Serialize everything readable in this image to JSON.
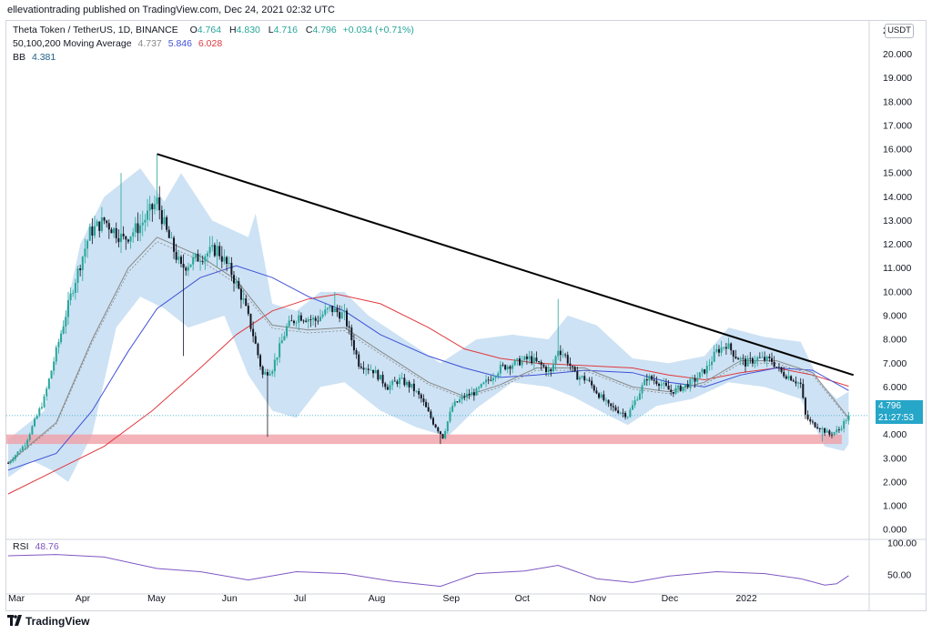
{
  "header": {
    "publish_line": "ellevationtrading published on TradingView.com, Dec 24, 2021 02:32 UTC"
  },
  "legend": {
    "symbol_line": "Theta Token / TetherUS, 1D, BINANCE",
    "ohlc": {
      "O_label": "O",
      "O": "4.764",
      "H_label": "H",
      "H": "4.830",
      "L_label": "L",
      "L": "4.716",
      "C_label": "C",
      "C": "4.796",
      "change": "+0.034 (+0.71%)"
    },
    "ma_label": "50,100,200 Moving Average",
    "ma50": "4.737",
    "ma100": "5.846",
    "ma200": "6.028",
    "bb_label": "BB",
    "bb": "4.381",
    "rsi_label": "RSI",
    "rsi": "48.76"
  },
  "currency_badge": "USDT",
  "price_tag": {
    "price": "4.796",
    "countdown": "21:27:53"
  },
  "footer": {
    "brand": "TradingView"
  },
  "colors": {
    "up": "#26a69a",
    "down": "#131722",
    "ma50": "#888888",
    "ma100": "#3f51d8",
    "ma200": "#e0393e",
    "band": "#bcd8f0",
    "trendline": "#000000",
    "support": "#f0a0a8",
    "rsi": "#7e57c2",
    "price_tag": "#26a6c8"
  },
  "chart_data": {
    "type": "candlestick",
    "x_axis_labels": [
      "Mar",
      "Apr",
      "May",
      "Jun",
      "Jul",
      "Aug",
      "Sep",
      "Oct",
      "Nov",
      "Dec",
      "2022"
    ],
    "y_ticks": [
      "0.000",
      "1.000",
      "2.000",
      "3.000",
      "4.000",
      "5.000",
      "6.000",
      "7.000",
      "8.000",
      "9.000",
      "10.000",
      "11.000",
      "12.000",
      "13.000",
      "14.000",
      "15.000",
      "16.000",
      "17.000",
      "18.000",
      "19.000",
      "20.000"
    ],
    "y_top_clipped_label": "2",
    "ylim": [
      -0.3,
      21.4
    ],
    "rsi_ticks": [
      "50.00",
      "100.00"
    ],
    "rsi_range": [
      20,
      100
    ],
    "close_path": [
      [
        0,
        2.8
      ],
      [
        7,
        3.6
      ],
      [
        15,
        5.5
      ],
      [
        20,
        7.5
      ],
      [
        27,
        10.2
      ],
      [
        34,
        12.5
      ],
      [
        40,
        13.0
      ],
      [
        48,
        12.2
      ],
      [
        55,
        12.8
      ],
      [
        62,
        13.8
      ],
      [
        66,
        12.5
      ],
      [
        72,
        11.0
      ],
      [
        80,
        11.5
      ],
      [
        87,
        11.8
      ],
      [
        93,
        10.8
      ],
      [
        98,
        9.6
      ],
      [
        102,
        8.2
      ],
      [
        106,
        6.5
      ],
      [
        110,
        6.8
      ],
      [
        116,
        8.5
      ],
      [
        121,
        9.0
      ],
      [
        128,
        8.8
      ],
      [
        134,
        9.3
      ],
      [
        140,
        9.0
      ],
      [
        146,
        7.0
      ],
      [
        152,
        6.7
      ],
      [
        158,
        6.0
      ],
      [
        163,
        6.3
      ],
      [
        168,
        6.0
      ],
      [
        172,
        5.5
      ],
      [
        177,
        4.5
      ],
      [
        181,
        3.9
      ],
      [
        185,
        5.2
      ],
      [
        190,
        5.6
      ],
      [
        195,
        5.8
      ],
      [
        200,
        6.3
      ],
      [
        205,
        6.8
      ],
      [
        211,
        7.0
      ],
      [
        217,
        7.2
      ],
      [
        222,
        6.9
      ],
      [
        226,
        6.6
      ],
      [
        229,
        7.6
      ],
      [
        232,
        7.3
      ],
      [
        236,
        6.5
      ],
      [
        241,
        6.3
      ],
      [
        245,
        5.8
      ],
      [
        250,
        5.2
      ],
      [
        254,
        5.0
      ],
      [
        258,
        4.8
      ],
      [
        262,
        5.6
      ],
      [
        266,
        6.4
      ],
      [
        271,
        6.2
      ],
      [
        276,
        5.8
      ],
      [
        281,
        6.0
      ],
      [
        286,
        6.3
      ],
      [
        291,
        6.8
      ],
      [
        295,
        7.5
      ],
      [
        299,
        7.8
      ],
      [
        303,
        7.3
      ],
      [
        307,
        7.0
      ],
      [
        312,
        7.2
      ],
      [
        318,
        7.1
      ],
      [
        322,
        6.6
      ],
      [
        326,
        6.4
      ],
      [
        330,
        6.1
      ],
      [
        332,
        4.8
      ],
      [
        334,
        4.5
      ],
      [
        338,
        4.3
      ],
      [
        342,
        4.0
      ],
      [
        346,
        4.2
      ],
      [
        350,
        4.8
      ]
    ],
    "marked_extremes": [
      {
        "day": 47,
        "high": 15.0
      },
      {
        "day": 62,
        "high": 15.8
      },
      {
        "day": 73,
        "low": 7.3
      },
      {
        "day": 108,
        "low": 3.9
      },
      {
        "day": 136,
        "high": 10.0
      },
      {
        "day": 180,
        "low": 3.6
      },
      {
        "day": 229,
        "high": 9.7
      },
      {
        "day": 339,
        "low": 3.7
      }
    ],
    "ma50_path": [
      [
        0,
        2.8
      ],
      [
        20,
        4.5
      ],
      [
        35,
        8.0
      ],
      [
        50,
        11.0
      ],
      [
        62,
        12.3
      ],
      [
        80,
        11.5
      ],
      [
        95,
        10.5
      ],
      [
        110,
        8.6
      ],
      [
        125,
        8.4
      ],
      [
        140,
        8.5
      ],
      [
        155,
        7.5
      ],
      [
        175,
        6.2
      ],
      [
        190,
        5.6
      ],
      [
        205,
        6.1
      ],
      [
        220,
        6.8
      ],
      [
        240,
        6.8
      ],
      [
        260,
        6.0
      ],
      [
        275,
        5.8
      ],
      [
        290,
        6.2
      ],
      [
        305,
        7.1
      ],
      [
        320,
        7.1
      ],
      [
        335,
        6.6
      ],
      [
        350,
        4.7
      ]
    ],
    "ma100_path": [
      [
        0,
        2.5
      ],
      [
        20,
        3.2
      ],
      [
        35,
        5.0
      ],
      [
        50,
        7.5
      ],
      [
        62,
        9.3
      ],
      [
        80,
        10.6
      ],
      [
        95,
        11.1
      ],
      [
        110,
        10.6
      ],
      [
        125,
        9.8
      ],
      [
        140,
        9.2
      ],
      [
        155,
        8.2
      ],
      [
        175,
        7.3
      ],
      [
        190,
        6.8
      ],
      [
        205,
        6.4
      ],
      [
        220,
        6.5
      ],
      [
        240,
        6.7
      ],
      [
        260,
        6.6
      ],
      [
        275,
        6.2
      ],
      [
        290,
        6.0
      ],
      [
        305,
        6.5
      ],
      [
        320,
        6.8
      ],
      [
        335,
        6.7
      ],
      [
        350,
        5.85
      ]
    ],
    "ma200_path": [
      [
        0,
        1.5
      ],
      [
        20,
        2.5
      ],
      [
        40,
        3.5
      ],
      [
        60,
        5.0
      ],
      [
        80,
        6.8
      ],
      [
        95,
        8.2
      ],
      [
        110,
        9.2
      ],
      [
        125,
        9.7
      ],
      [
        137,
        9.9
      ],
      [
        155,
        9.5
      ],
      [
        175,
        8.5
      ],
      [
        190,
        7.6
      ],
      [
        205,
        7.2
      ],
      [
        220,
        7.0
      ],
      [
        240,
        6.9
      ],
      [
        260,
        6.8
      ],
      [
        275,
        6.5
      ],
      [
        290,
        6.3
      ],
      [
        305,
        6.6
      ],
      [
        320,
        6.8
      ],
      [
        335,
        6.5
      ],
      [
        350,
        6.03
      ]
    ],
    "bb_upper": [
      [
        0,
        3.8
      ],
      [
        15,
        5.0
      ],
      [
        30,
        12.0
      ],
      [
        40,
        14.0
      ],
      [
        55,
        15.2
      ],
      [
        65,
        13.8
      ],
      [
        72,
        15.0
      ],
      [
        85,
        13.0
      ],
      [
        100,
        12.3
      ],
      [
        103,
        13.3
      ],
      [
        110,
        9.5
      ],
      [
        120,
        9.2
      ],
      [
        130,
        10.0
      ],
      [
        140,
        10.0
      ],
      [
        150,
        9.0
      ],
      [
        165,
        8.0
      ],
      [
        180,
        7.0
      ],
      [
        195,
        8.0
      ],
      [
        210,
        8.2
      ],
      [
        225,
        8.0
      ],
      [
        233,
        9.0
      ],
      [
        245,
        8.6
      ],
      [
        260,
        7.2
      ],
      [
        275,
        7.0
      ],
      [
        290,
        7.3
      ],
      [
        300,
        8.5
      ],
      [
        315,
        8.1
      ],
      [
        330,
        7.9
      ],
      [
        338,
        6.2
      ],
      [
        345,
        5.5
      ],
      [
        350,
        5.8
      ]
    ],
    "bb_lower": [
      [
        0,
        2.2
      ],
      [
        10,
        2.9
      ],
      [
        18,
        2.5
      ],
      [
        25,
        2.0
      ],
      [
        35,
        4.0
      ],
      [
        45,
        8.5
      ],
      [
        55,
        9.8
      ],
      [
        65,
        9.3
      ],
      [
        75,
        8.5
      ],
      [
        90,
        9.0
      ],
      [
        100,
        6.5
      ],
      [
        110,
        5.0
      ],
      [
        120,
        4.7
      ],
      [
        130,
        6.0
      ],
      [
        140,
        6.2
      ],
      [
        155,
        5.0
      ],
      [
        170,
        4.3
      ],
      [
        183,
        3.9
      ],
      [
        195,
        5.1
      ],
      [
        210,
        6.2
      ],
      [
        225,
        6.0
      ],
      [
        235,
        5.6
      ],
      [
        250,
        4.8
      ],
      [
        258,
        4.4
      ],
      [
        270,
        5.2
      ],
      [
        285,
        5.5
      ],
      [
        300,
        6.2
      ],
      [
        315,
        6.0
      ],
      [
        330,
        5.5
      ],
      [
        340,
        3.5
      ],
      [
        348,
        3.3
      ],
      [
        350,
        3.6
      ]
    ],
    "trendline": {
      "start": {
        "day": 62,
        "price": 15.8
      },
      "end": {
        "day": 352,
        "price": 6.5
      }
    },
    "support_zone": [
      3.6,
      4.0
    ],
    "last_price": 4.796,
    "rsi_path": [
      [
        0,
        80
      ],
      [
        20,
        82
      ],
      [
        40,
        78
      ],
      [
        62,
        60
      ],
      [
        80,
        55
      ],
      [
        100,
        42
      ],
      [
        120,
        55
      ],
      [
        140,
        52
      ],
      [
        160,
        40
      ],
      [
        180,
        32
      ],
      [
        195,
        52
      ],
      [
        215,
        56
      ],
      [
        229,
        65
      ],
      [
        245,
        44
      ],
      [
        260,
        38
      ],
      [
        275,
        48
      ],
      [
        295,
        55
      ],
      [
        315,
        52
      ],
      [
        330,
        44
      ],
      [
        340,
        34
      ],
      [
        345,
        36
      ],
      [
        350,
        48.76
      ]
    ]
  }
}
